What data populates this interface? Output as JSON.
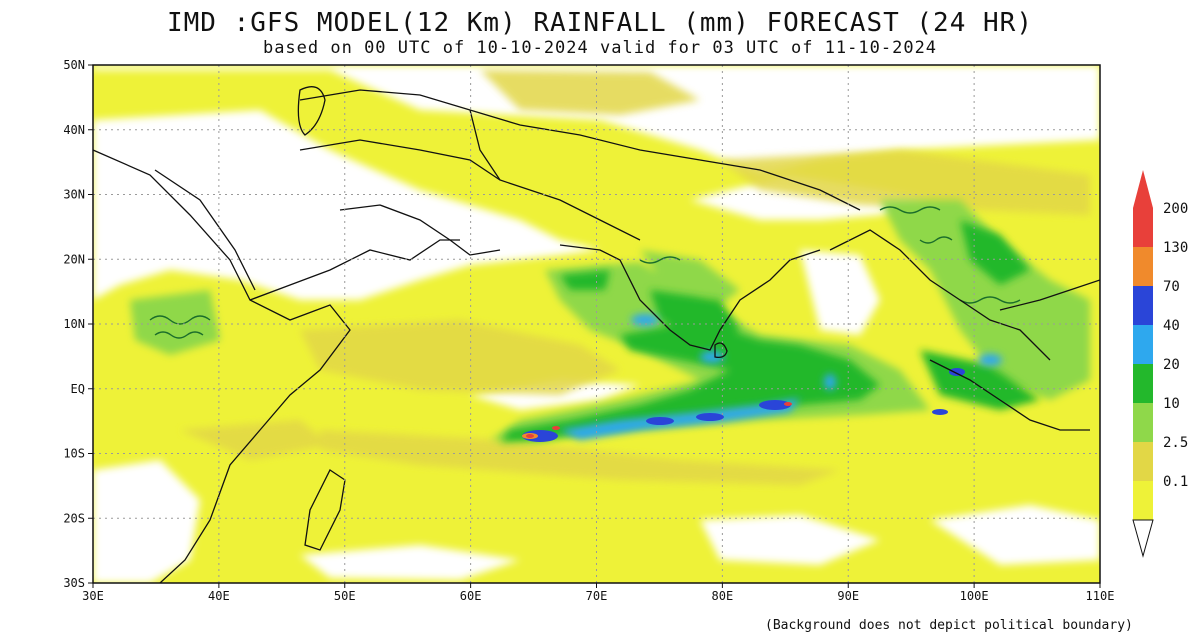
{
  "header": {
    "title": "IMD :GFS MODEL(12 Km) RAINFALL (mm) FORECAST (24 HR)",
    "subtitle": "based on 00 UTC of 10-10-2024 valid for 03 UTC of 11-10-2024"
  },
  "map": {
    "lon_range": [
      30,
      110
    ],
    "lat_range": [
      -30,
      50
    ],
    "x_ticks": [
      "30E",
      "40E",
      "50E",
      "60E",
      "70E",
      "80E",
      "90E",
      "100E",
      "110E"
    ],
    "y_ticks": [
      "50N",
      "40N",
      "30N",
      "20N",
      "10N",
      "EQ",
      "10S",
      "20S",
      "30S"
    ],
    "colors": {
      "land_bg": "#ffffff",
      "outline": "#111111",
      "grid": "#9a9a9a"
    }
  },
  "legend": {
    "levels": [
      {
        "label": "200",
        "color": "#e8403a"
      },
      {
        "label": "130",
        "color": "#f08a2c"
      },
      {
        "label": "70",
        "color": "#2a45d8"
      },
      {
        "label": "40",
        "color": "#2ea8ee"
      },
      {
        "label": "20",
        "color": "#23b82c"
      },
      {
        "label": "10",
        "color": "#8fd84a"
      },
      {
        "label": "2.5",
        "color": "#e2d746"
      },
      {
        "label": "0.1",
        "color": "#eef238"
      }
    ]
  },
  "footnote": "(Background does not depict political boundary)"
}
